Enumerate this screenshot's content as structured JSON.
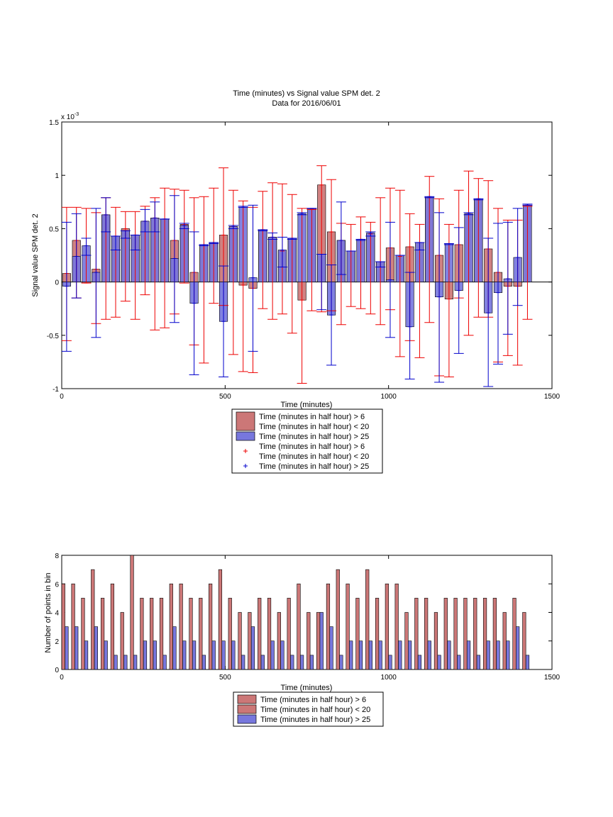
{
  "chart_data": [
    {
      "type": "bar",
      "title": "Time (minutes) vs Signal value SPM det. 2",
      "subtitle": "Data for 2016/06/01",
      "xlabel": "Time (minutes)",
      "ylabel": "Signal value SPM det. 2",
      "y_exponent_label": "x 10",
      "y_exponent_power": "-3",
      "xlim": [
        0,
        1500
      ],
      "ylim": [
        -1,
        1.5
      ],
      "xticks": [
        "0",
        "500",
        "1000",
        "1500"
      ],
      "yticks": [
        "-1",
        "-0.5",
        "0",
        "0.5",
        "1",
        "1.5"
      ],
      "grid": false,
      "legend_position": "below",
      "legend": [
        {
          "kind": "bar",
          "lines": [
            "Time (minutes in half hour) > 6",
            "Time (minutes in half hour) < 20"
          ],
          "color": "#cc7777"
        },
        {
          "kind": "bar",
          "lines": [
            "Time (minutes in half hour) > 25"
          ],
          "color": "#7777dd"
        },
        {
          "kind": "plus",
          "lines": [
            "Time (minutes in half hour) > 6",
            "Time (minutes in half hour) < 20"
          ],
          "color": "#ee0000"
        },
        {
          "kind": "plus",
          "lines": [
            "Time (minutes in half hour) > 25"
          ],
          "color": "#0000cc"
        }
      ],
      "series": [
        {
          "name": "Time (minutes in half hour) > 6 Time (minutes in half hour) < 20",
          "color": "#cc7777",
          "errorbar_color": "#ee0000",
          "x": [
            15,
            45,
            75,
            105,
            135,
            165,
            195,
            225,
            255,
            285,
            315,
            345,
            375,
            405,
            435,
            465,
            495,
            525,
            555,
            585,
            615,
            645,
            675,
            705,
            735,
            765,
            795,
            825,
            855,
            885,
            915,
            945,
            975,
            1005,
            1035,
            1065,
            1095,
            1125,
            1155,
            1185,
            1215,
            1245,
            1275,
            1305,
            1335,
            1365,
            1395,
            1425
          ],
          "values": [
            0.08,
            0.39,
            -0.01,
            0.12,
            0.63,
            0.43,
            0.5,
            0.44,
            0.57,
            0.6,
            0.59,
            0.39,
            0.54,
            0.09,
            0.35,
            0.36,
            0.44,
            0.52,
            -0.03,
            -0.06,
            0.49,
            0.42,
            0.29,
            0.41,
            -0.17,
            0.68,
            0.91,
            0.47,
            0.39,
            0.29,
            0.4,
            0.45,
            0.19,
            0.32,
            0.24,
            0.33,
            0.37,
            0.79,
            0.25,
            -0.16,
            0.35,
            0.64,
            0.77,
            0.31,
            0.09,
            -0.04,
            -0.04,
            0.72
          ],
          "err_low": [
            -0.55,
            -0.15,
            -0.01,
            -0.39,
            -0.35,
            -0.33,
            -0.18,
            -0.35,
            -0.12,
            -0.45,
            -0.43,
            -0.3,
            -0.01,
            -0.59,
            -0.76,
            -0.2,
            -0.22,
            -0.68,
            -0.84,
            -0.85,
            -0.25,
            -0.35,
            -0.3,
            -0.48,
            -0.95,
            -0.27,
            -0.28,
            -0.27,
            -0.4,
            -0.23,
            -0.25,
            -0.3,
            -0.4,
            -0.26,
            -0.7,
            -0.55,
            -0.71,
            -0.38,
            -0.88,
            -0.89,
            -0.15,
            -0.5,
            -0.33,
            -0.33,
            -0.75,
            -0.69,
            -0.78,
            -0.35
          ],
          "err_high": [
            0.7,
            0.7,
            0.69,
            0.65,
            0.79,
            0.7,
            0.66,
            0.66,
            0.71,
            0.79,
            0.88,
            0.87,
            0.86,
            0.79,
            0.8,
            0.88,
            1.07,
            0.86,
            0.76,
            0.7,
            0.85,
            0.93,
            0.92,
            0.82,
            0.69,
            0.68,
            1.09,
            0.96,
            0.55,
            0.54,
            0.61,
            0.56,
            0.79,
            0.88,
            0.86,
            0.64,
            0.54,
            0.99,
            0.78,
            0.54,
            0.86,
            1.04,
            0.97,
            0.95,
            0.69,
            0.58,
            0.58,
            0.71
          ]
        },
        {
          "name": "Time (minutes in half hour) > 25",
          "color": "#7777dd",
          "errorbar_color": "#0000cc",
          "x": [
            15,
            45,
            75,
            105,
            135,
            165,
            195,
            225,
            255,
            285,
            315,
            345,
            375,
            405,
            435,
            465,
            495,
            525,
            555,
            585,
            615,
            645,
            675,
            705,
            735,
            765,
            795,
            825,
            855,
            885,
            915,
            945,
            975,
            1005,
            1035,
            1065,
            1095,
            1125,
            1155,
            1185,
            1215,
            1245,
            1275,
            1305,
            1335,
            1365,
            1395,
            1425
          ],
          "values": [
            -0.04,
            0.24,
            0.34,
            0.09,
            0.63,
            0.43,
            0.48,
            0.44,
            0.57,
            0.6,
            0.59,
            0.22,
            0.53,
            -0.2,
            0.35,
            0.37,
            -0.37,
            0.52,
            0.7,
            0.04,
            0.49,
            0.42,
            0.3,
            0.41,
            0.64,
            0.69,
            0.26,
            -0.31,
            0.39,
            0.29,
            0.4,
            0.46,
            0.19,
            0.02,
            0.25,
            -0.42,
            0.37,
            0.8,
            -0.14,
            0.36,
            -0.08,
            0.64,
            0.78,
            -0.29,
            -0.1,
            0.03,
            0.23,
            0.72
          ],
          "err_low": [
            -0.65,
            -0.15,
            0.25,
            -0.52,
            0.47,
            0.3,
            0.41,
            0.3,
            0.47,
            0.47,
            0.59,
            -0.38,
            0.5,
            -0.87,
            0.34,
            0.36,
            -0.89,
            0.5,
            0.7,
            -0.65,
            0.48,
            0.4,
            0.14,
            0.4,
            0.63,
            0.69,
            -0.26,
            -0.78,
            0.07,
            0.29,
            0.39,
            0.43,
            0.14,
            -0.52,
            0.25,
            -0.91,
            0.3,
            0.79,
            -0.94,
            0.35,
            -0.67,
            0.63,
            0.77,
            -0.98,
            -0.77,
            -0.49,
            -0.22,
            0.72
          ],
          "err_high": [
            0.56,
            0.64,
            0.41,
            0.69,
            0.79,
            0.43,
            0.48,
            0.44,
            0.68,
            0.75,
            0.59,
            0.81,
            0.55,
            0.47,
            0.35,
            0.37,
            0.15,
            0.53,
            0.71,
            0.72,
            0.49,
            0.46,
            0.42,
            0.41,
            0.65,
            0.69,
            0.26,
            0.16,
            0.75,
            0.29,
            0.4,
            0.47,
            0.19,
            0.56,
            0.25,
            0.09,
            0.37,
            0.8,
            0.65,
            0.36,
            0.51,
            0.65,
            0.78,
            0.41,
            0.55,
            0.56,
            0.69,
            0.73
          ]
        }
      ]
    },
    {
      "type": "bar",
      "title": "",
      "xlabel": "Time (minutes)",
      "ylabel": "Number of points in bin",
      "xlim": [
        0,
        1500
      ],
      "ylim": [
        0,
        8
      ],
      "xticks": [
        "0",
        "500",
        "1000",
        "1500"
      ],
      "yticks": [
        "0",
        "2",
        "4",
        "6",
        "8"
      ],
      "grid": false,
      "legend_position": "below",
      "legend": [
        {
          "kind": "bar",
          "lines": [
            "Time (minutes in half hour) > 6"
          ],
          "color": "#cc7777"
        },
        {
          "kind": "bar",
          "lines": [
            "Time (minutes in half hour) < 20"
          ],
          "color": "#cc7777"
        },
        {
          "kind": "bar",
          "lines": [
            "Time (minutes in half hour) > 25"
          ],
          "color": "#7777dd"
        }
      ],
      "series": [
        {
          "name": "Time (minutes in half hour) > 6 Time (minutes in half hour) < 20",
          "color": "#cc7777",
          "x": [
            5,
            35,
            65,
            95,
            125,
            155,
            185,
            215,
            245,
            275,
            305,
            335,
            365,
            395,
            425,
            455,
            485,
            515,
            545,
            575,
            605,
            635,
            665,
            695,
            725,
            755,
            785,
            815,
            845,
            875,
            905,
            935,
            965,
            995,
            1025,
            1055,
            1085,
            1115,
            1145,
            1175,
            1205,
            1235,
            1265,
            1295,
            1325,
            1355,
            1385,
            1415
          ],
          "values": [
            6,
            6,
            5,
            7,
            5,
            6,
            4,
            8,
            5,
            5,
            5,
            6,
            6,
            5,
            5,
            6,
            7,
            5,
            4,
            4,
            5,
            5,
            4,
            5,
            6,
            4,
            4,
            6,
            7,
            6,
            5,
            7,
            5,
            6,
            6,
            4,
            5,
            5,
            4,
            5,
            5,
            5,
            5,
            5,
            5,
            4,
            5,
            4
          ]
        },
        {
          "name": "Time (minutes in half hour) > 25",
          "color": "#7777dd",
          "x": [
            15,
            45,
            75,
            105,
            135,
            165,
            195,
            225,
            255,
            285,
            315,
            345,
            375,
            405,
            435,
            465,
            495,
            525,
            555,
            585,
            615,
            645,
            675,
            705,
            735,
            765,
            795,
            825,
            855,
            885,
            915,
            945,
            975,
            1005,
            1035,
            1065,
            1095,
            1125,
            1155,
            1185,
            1215,
            1245,
            1275,
            1305,
            1335,
            1365,
            1395,
            1425
          ],
          "values": [
            3,
            3,
            2,
            3,
            2,
            1,
            1,
            1,
            2,
            2,
            1,
            3,
            2,
            2,
            1,
            2,
            2,
            2,
            1,
            3,
            1,
            2,
            2,
            1,
            1,
            1,
            4,
            3,
            1,
            2,
            2,
            2,
            2,
            1,
            2,
            2,
            1,
            2,
            1,
            2,
            1,
            2,
            1,
            2,
            2,
            2,
            3,
            1
          ]
        }
      ]
    }
  ]
}
